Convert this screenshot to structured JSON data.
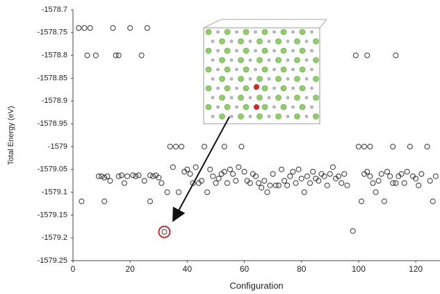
{
  "chart_data": {
    "type": "scatter",
    "x_label": "Configuration",
    "y_label": "Total Energy (eV)",
    "x": [
      2,
      4,
      6,
      14,
      20,
      26,
      5,
      8,
      15,
      16,
      24,
      99,
      103,
      113,
      34,
      36,
      38,
      46,
      53,
      59,
      100,
      102,
      104,
      112,
      118,
      124,
      3,
      11,
      27,
      101,
      109,
      126,
      32,
      98,
      9,
      10,
      11,
      12,
      13,
      16,
      17,
      18,
      19,
      21,
      22,
      23,
      25,
      27,
      28,
      29,
      30,
      31,
      33,
      35,
      37,
      39,
      40,
      41,
      42,
      43,
      44,
      45,
      47,
      48,
      49,
      50,
      51,
      52,
      53,
      54,
      55,
      56,
      57,
      58,
      60,
      61,
      62,
      63,
      64,
      65,
      66,
      67,
      68,
      69,
      70,
      71,
      72,
      73,
      74,
      75,
      76,
      77,
      78,
      79,
      80,
      81,
      82,
      83,
      84,
      85,
      86,
      87,
      88,
      89,
      90,
      91,
      92,
      93,
      94,
      95,
      96,
      102,
      103,
      104,
      105,
      106,
      107,
      108,
      110,
      111,
      112,
      113,
      114,
      115,
      116,
      117,
      119,
      120,
      121,
      122,
      125,
      127
    ],
    "values": [
      -1578.74,
      -1578.74,
      -1578.74,
      -1578.74,
      -1578.74,
      -1578.74,
      -1578.8,
      -1578.8,
      -1578.8,
      -1578.8,
      -1578.8,
      -1578.8,
      -1578.8,
      -1578.8,
      -1579,
      -1579,
      -1579,
      -1579,
      -1579,
      -1579,
      -1579,
      -1579,
      -1579,
      -1579,
      -1579,
      -1579,
      -1579.12,
      -1579.12,
      -1579.12,
      -1579.12,
      -1579.12,
      -1579.12,
      -1579.187,
      -1579.185,
      -1579.065,
      -1579.065,
      -1579.068,
      -1579.065,
      -1579.075,
      -1579.065,
      -1579.063,
      -1579.08,
      -1579.065,
      -1579.063,
      -1579.065,
      -1579.063,
      -1579.075,
      -1579.063,
      -1579.065,
      -1579.063,
      -1579.068,
      -1579.08,
      -1579.1,
      -1579.045,
      -1579.1,
      -1579.055,
      -1579.05,
      -1579.06,
      -1579.08,
      -1579.045,
      -1579.08,
      -1579.075,
      -1579.1,
      -1579.05,
      -1579.065,
      -1579.08,
      -1579.07,
      -1579.06,
      -1579.055,
      -1579.08,
      -1579.05,
      -1579.06,
      -1579.075,
      -1579.045,
      -1579.055,
      -1579.075,
      -1579.08,
      -1579.06,
      -1579.065,
      -1579.08,
      -1579.09,
      -1579.075,
      -1579.1,
      -1579.085,
      -1579.06,
      -1579.085,
      -1579.085,
      -1579.05,
      -1579.075,
      -1579.085,
      -1579.065,
      -1579.055,
      -1579.08,
      -1579.05,
      -1579.07,
      -1579.1,
      -1579.065,
      -1579.08,
      -1579.055,
      -1579.07,
      -1579.075,
      -1579.06,
      -1579.065,
      -1579.085,
      -1579.06,
      -1579.045,
      -1579.07,
      -1579.065,
      -1579.08,
      -1579.06,
      -1579.085,
      -1579.06,
      -1579.055,
      -1579.065,
      -1579.08,
      -1579.1,
      -1579.075,
      -1579.06,
      -1579.055,
      -1579.065,
      -1579.08,
      -1579.08,
      -1579.065,
      -1579.06,
      -1579.08,
      -1579.055,
      -1579.065,
      -1579.07,
      -1579.085,
      -1579.06,
      -1579.075,
      -1579.065
    ],
    "color": "#333333",
    "highlight_color": "#d62728",
    "xlim": [
      0,
      128.5
    ],
    "xticks": [
      0,
      20,
      40,
      60,
      80,
      100,
      120
    ],
    "ylim": [
      -1579.25,
      -1578.7
    ],
    "yticks": [
      -1578.7,
      -1578.75,
      -1578.8,
      -1578.85,
      -1578.9,
      -1578.95,
      -1579,
      -1579.05,
      -1579.1,
      -1579.15,
      -1579.2,
      -1579.25
    ],
    "grid": false
  }
}
